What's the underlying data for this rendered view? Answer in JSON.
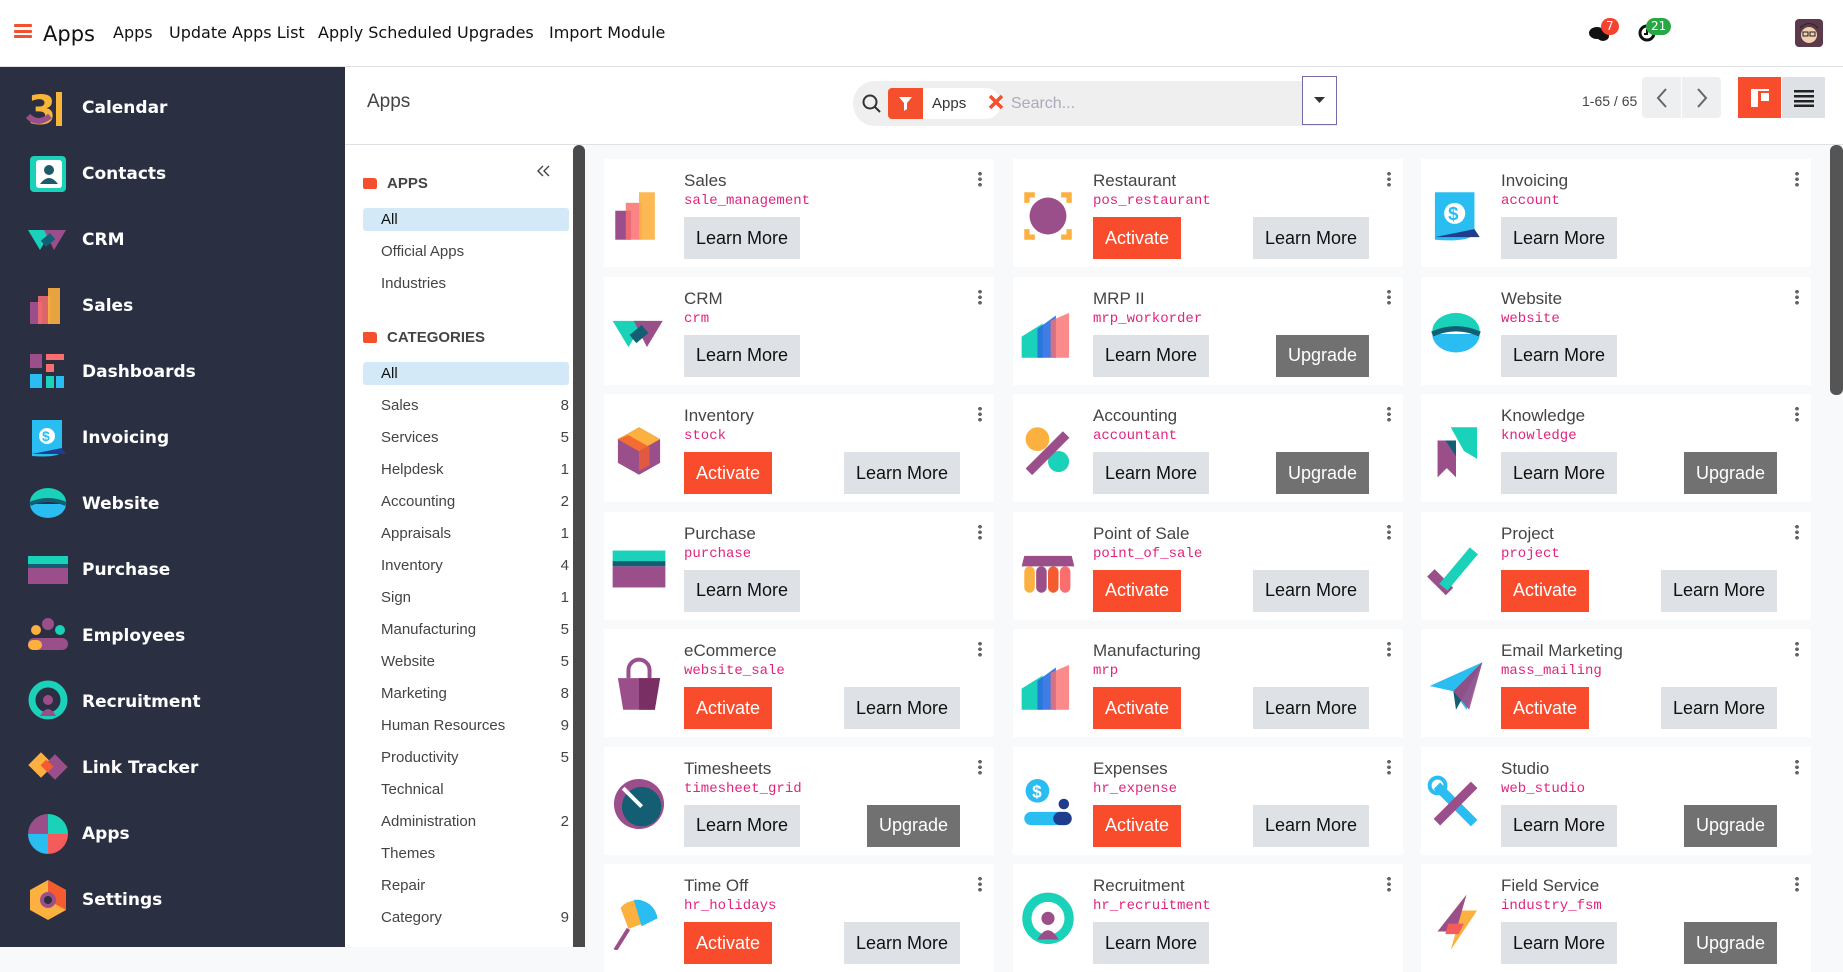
{
  "topbar": {
    "brand": "Apps",
    "menu": [
      "Apps",
      "Update Apps List",
      "Apply Scheduled Upgrades",
      "Import Module"
    ],
    "messages_count": "7",
    "activities_count": "21"
  },
  "sidebar": {
    "items": [
      {
        "label": "Calendar",
        "icon": "calendar"
      },
      {
        "label": "Contacts",
        "icon": "contacts"
      },
      {
        "label": "CRM",
        "icon": "crm"
      },
      {
        "label": "Sales",
        "icon": "sales"
      },
      {
        "label": "Dashboards",
        "icon": "dashboards"
      },
      {
        "label": "Invoicing",
        "icon": "invoicing"
      },
      {
        "label": "Website",
        "icon": "website"
      },
      {
        "label": "Purchase",
        "icon": "purchase"
      },
      {
        "label": "Employees",
        "icon": "employees"
      },
      {
        "label": "Recruitment",
        "icon": "recruitment"
      },
      {
        "label": "Link Tracker",
        "icon": "link-tracker"
      },
      {
        "label": "Apps",
        "icon": "apps"
      },
      {
        "label": "Settings",
        "icon": "settings"
      }
    ]
  },
  "control": {
    "title": "Apps",
    "facet": "Apps",
    "search_placeholder": "Search...",
    "pager": "1-65 / 65"
  },
  "filters": {
    "apps_header": "APPS",
    "apps": [
      {
        "label": "All",
        "selected": true
      },
      {
        "label": "Official Apps"
      },
      {
        "label": "Industries"
      }
    ],
    "categories_header": "CATEGORIES",
    "categories": [
      {
        "label": "All",
        "selected": true
      },
      {
        "label": "Sales",
        "count": "8"
      },
      {
        "label": "Services",
        "count": "5"
      },
      {
        "label": "Helpdesk",
        "count": "1"
      },
      {
        "label": "Accounting",
        "count": "2"
      },
      {
        "label": "Appraisals",
        "count": "1"
      },
      {
        "label": "Inventory",
        "count": "4"
      },
      {
        "label": "Sign",
        "count": "1"
      },
      {
        "label": "Manufacturing",
        "count": "5"
      },
      {
        "label": "Website",
        "count": "5"
      },
      {
        "label": "Marketing",
        "count": "8"
      },
      {
        "label": "Human Resources",
        "count": "9"
      },
      {
        "label": "Productivity",
        "count": "5"
      },
      {
        "label": "Technical"
      },
      {
        "label": "Administration",
        "count": "2"
      },
      {
        "label": "Themes"
      },
      {
        "label": "Repair"
      },
      {
        "label": "Category",
        "count": "9"
      }
    ]
  },
  "colors": {
    "accent": "#f94c2c",
    "sidebar": "#2a2f42",
    "module_code": "#e0247e",
    "upgrade": "#717171",
    "learn_more": "#dee2e6"
  },
  "apps": [
    {
      "name": "Sales",
      "code": "sale_management",
      "icon": "sales",
      "buttons": [
        "Learn More"
      ]
    },
    {
      "name": "Restaurant",
      "code": "pos_restaurant",
      "icon": "restaurant",
      "buttons": [
        "Activate",
        "Learn More"
      ]
    },
    {
      "name": "Invoicing",
      "code": "account",
      "icon": "invoicing",
      "buttons": [
        "Learn More"
      ]
    },
    {
      "name": "CRM",
      "code": "crm",
      "icon": "crm",
      "buttons": [
        "Learn More"
      ]
    },
    {
      "name": "MRP II",
      "code": "mrp_workorder",
      "icon": "mrp",
      "buttons": [
        "Learn More",
        "Upgrade"
      ]
    },
    {
      "name": "Website",
      "code": "website",
      "icon": "website",
      "buttons": [
        "Learn More"
      ]
    },
    {
      "name": "Inventory",
      "code": "stock",
      "icon": "inventory",
      "buttons": [
        "Activate",
        "Learn More"
      ]
    },
    {
      "name": "Accounting",
      "code": "accountant",
      "icon": "accounting",
      "buttons": [
        "Learn More",
        "Upgrade"
      ]
    },
    {
      "name": "Knowledge",
      "code": "knowledge",
      "icon": "knowledge",
      "buttons": [
        "Learn More",
        "Upgrade"
      ]
    },
    {
      "name": "Purchase",
      "code": "purchase",
      "icon": "purchase",
      "buttons": [
        "Learn More"
      ]
    },
    {
      "name": "Point of Sale",
      "code": "point_of_sale",
      "icon": "pos",
      "buttons": [
        "Activate",
        "Learn More"
      ]
    },
    {
      "name": "Project",
      "code": "project",
      "icon": "project",
      "buttons": [
        "Activate",
        "Learn More"
      ]
    },
    {
      "name": "eCommerce",
      "code": "website_sale",
      "icon": "ecommerce",
      "buttons": [
        "Activate",
        "Learn More"
      ]
    },
    {
      "name": "Manufacturing",
      "code": "mrp",
      "icon": "mrp",
      "buttons": [
        "Activate",
        "Learn More"
      ]
    },
    {
      "name": "Email Marketing",
      "code": "mass_mailing",
      "icon": "email",
      "buttons": [
        "Activate",
        "Learn More"
      ]
    },
    {
      "name": "Timesheets",
      "code": "timesheet_grid",
      "icon": "timesheets",
      "buttons": [
        "Learn More",
        "Upgrade"
      ]
    },
    {
      "name": "Expenses",
      "code": "hr_expense",
      "icon": "expenses",
      "buttons": [
        "Activate",
        "Learn More"
      ]
    },
    {
      "name": "Studio",
      "code": "web_studio",
      "icon": "studio",
      "buttons": [
        "Learn More",
        "Upgrade"
      ]
    },
    {
      "name": "Time Off",
      "code": "hr_holidays",
      "icon": "timeoff",
      "buttons": [
        "Activate",
        "Learn More"
      ]
    },
    {
      "name": "Recruitment",
      "code": "hr_recruitment",
      "icon": "recruitment",
      "buttons": [
        "Learn More"
      ]
    },
    {
      "name": "Field Service",
      "code": "industry_fsm",
      "icon": "fieldservice",
      "buttons": [
        "Learn More",
        "Upgrade"
      ]
    }
  ]
}
